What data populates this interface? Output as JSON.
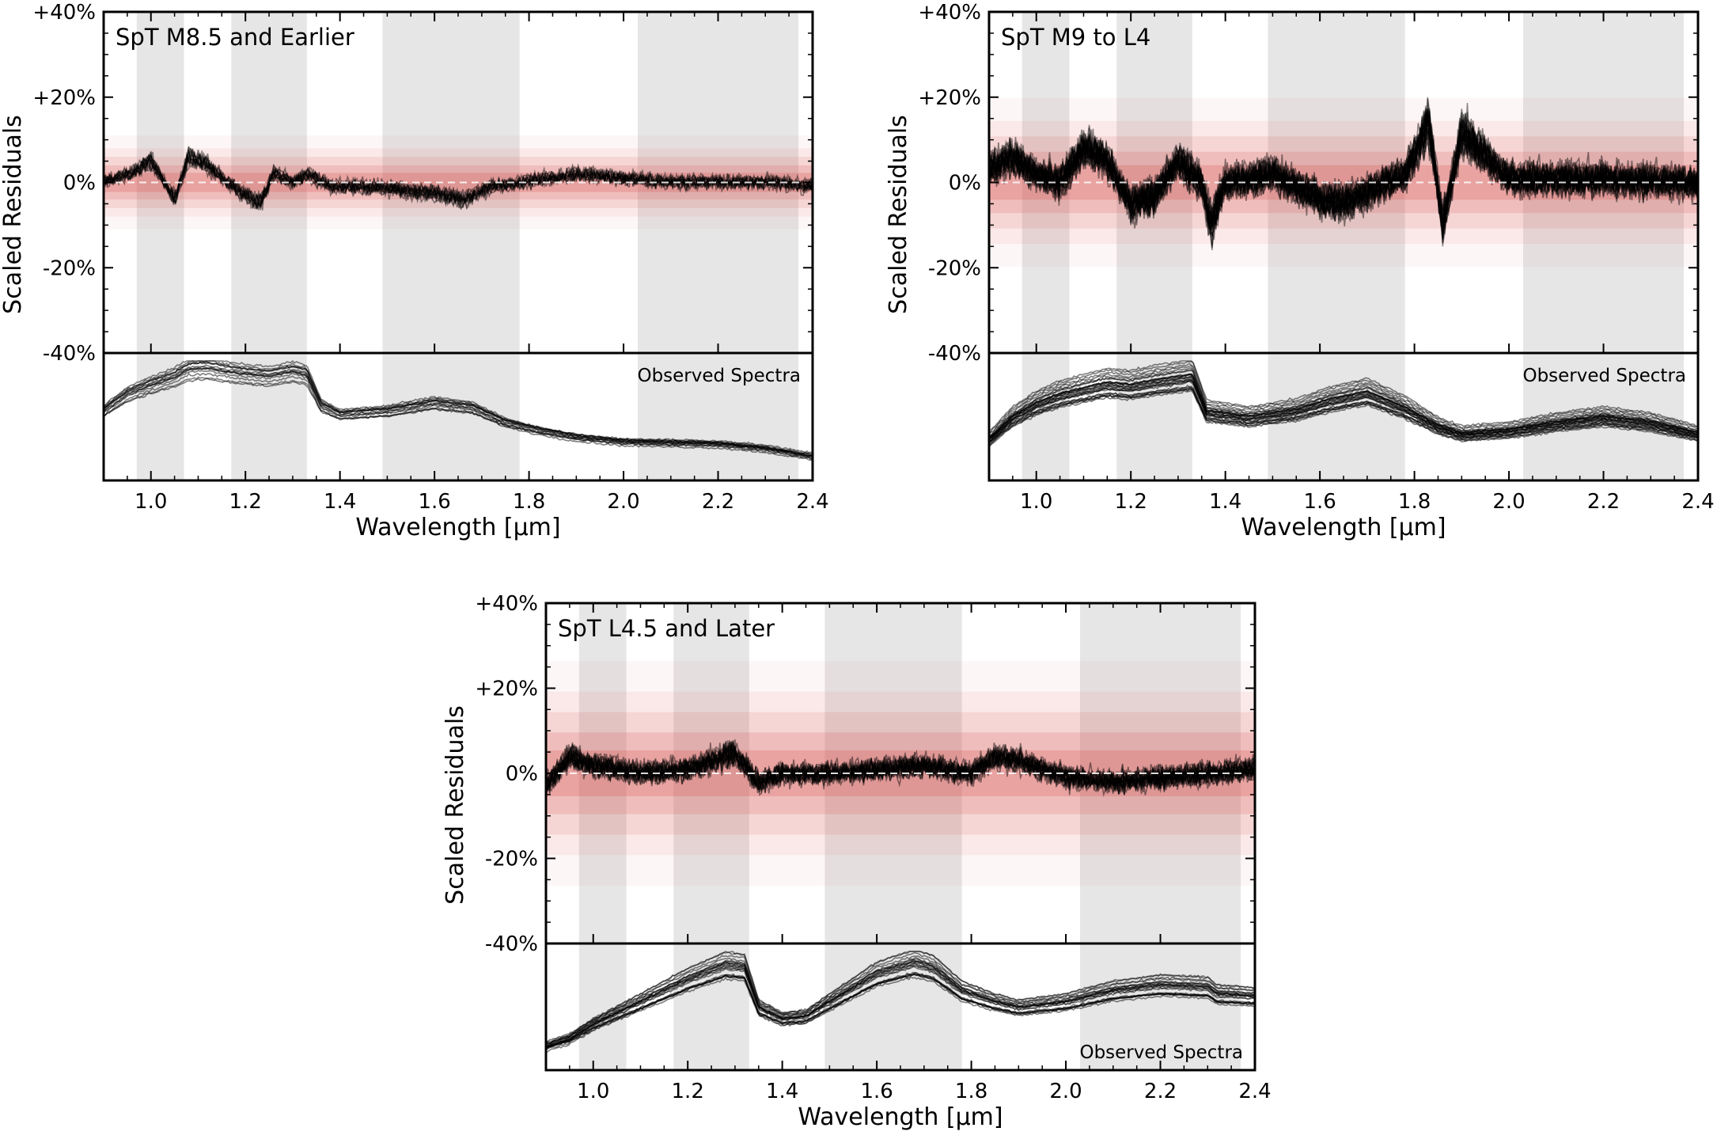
{
  "figure": {
    "ylabel": "Scaled Residuals",
    "xlabel": "Wavelength [µm]",
    "observed_label": "Observed Spectra"
  },
  "chart_data": [
    {
      "type": "line",
      "title": "SpT M8.5 and Earlier",
      "xlabel": "Wavelength [µm]",
      "ylabel": "Scaled Residuals",
      "xlim": [
        0.9,
        2.4
      ],
      "ylim": [
        -40,
        40
      ],
      "xticks": [
        "1.0",
        "1.2",
        "1.4",
        "1.6",
        "1.8",
        "2.0",
        "2.2",
        "2.4"
      ],
      "yticks": [
        "+40%",
        "+20%",
        "0%",
        "-20%",
        "-40%"
      ],
      "shaded_bands_um": [
        [
          0.97,
          1.07
        ],
        [
          1.17,
          1.33
        ],
        [
          1.49,
          1.78
        ],
        [
          2.03,
          2.37
        ]
      ],
      "zero_line": true,
      "annotation": "Observed Spectra",
      "residual_envelope_pct": 5,
      "n_spectra": 14,
      "noise_pct": 2.5,
      "residual_profile": {
        "x": [
          0.9,
          0.95,
          0.97,
          1.0,
          1.05,
          1.08,
          1.12,
          1.16,
          1.2,
          1.23,
          1.26,
          1.3,
          1.33,
          1.38,
          1.45,
          1.55,
          1.62,
          1.66,
          1.72,
          1.78,
          1.85,
          1.9,
          2.0,
          2.1,
          2.2,
          2.3,
          2.4
        ],
        "y": [
          0,
          2,
          3,
          5,
          -4,
          6,
          4,
          0,
          -3,
          -5,
          2,
          0,
          2,
          -1,
          -1,
          -2,
          -3,
          -4,
          -1,
          0,
          1,
          2,
          1,
          0,
          0,
          0,
          -1
        ]
      },
      "observed_spectrum": {
        "x": [
          0.9,
          0.95,
          1.0,
          1.05,
          1.08,
          1.12,
          1.16,
          1.2,
          1.25,
          1.3,
          1.33,
          1.36,
          1.4,
          1.5,
          1.6,
          1.68,
          1.75,
          1.82,
          1.9,
          2.0,
          2.1,
          2.2,
          2.3,
          2.4
        ],
        "flux": [
          0.55,
          0.7,
          0.78,
          0.85,
          0.92,
          0.93,
          0.9,
          0.88,
          0.86,
          0.9,
          0.87,
          0.6,
          0.52,
          0.55,
          0.62,
          0.58,
          0.45,
          0.38,
          0.32,
          0.28,
          0.27,
          0.26,
          0.22,
          0.15
        ]
      }
    },
    {
      "type": "line",
      "title": "SpT M9 to L4",
      "xlabel": "Wavelength [µm]",
      "ylabel": "Scaled Residuals",
      "xlim": [
        0.9,
        2.4
      ],
      "ylim": [
        -40,
        40
      ],
      "xticks": [
        "1.0",
        "1.2",
        "1.4",
        "1.6",
        "1.8",
        "2.0",
        "2.2",
        "2.4"
      ],
      "yticks": [
        "+40%",
        "+20%",
        "0%",
        "-20%",
        "-40%"
      ],
      "shaded_bands_um": [
        [
          0.97,
          1.07
        ],
        [
          1.17,
          1.33
        ],
        [
          1.49,
          1.78
        ],
        [
          2.03,
          2.37
        ]
      ],
      "zero_line": true,
      "annotation": "Observed Spectra",
      "residual_envelope_pct": 9,
      "n_spectra": 28,
      "noise_pct": 6,
      "residual_profile": {
        "x": [
          0.9,
          0.95,
          1.0,
          1.05,
          1.1,
          1.15,
          1.2,
          1.25,
          1.3,
          1.35,
          1.37,
          1.4,
          1.5,
          1.6,
          1.65,
          1.7,
          1.78,
          1.83,
          1.86,
          1.9,
          2.0,
          2.2,
          2.4
        ],
        "y": [
          3,
          6,
          2,
          0,
          8,
          5,
          -5,
          -3,
          5,
          0,
          -10,
          0,
          2,
          -4,
          -5,
          -2,
          2,
          14,
          -10,
          12,
          1,
          1,
          0
        ]
      },
      "observed_spectrum": {
        "x": [
          0.9,
          0.95,
          1.0,
          1.05,
          1.1,
          1.15,
          1.2,
          1.25,
          1.3,
          1.33,
          1.36,
          1.45,
          1.55,
          1.62,
          1.7,
          1.78,
          1.85,
          1.9,
          2.0,
          2.1,
          2.2,
          2.3,
          2.4
        ],
        "flux": [
          0.3,
          0.5,
          0.62,
          0.7,
          0.75,
          0.8,
          0.78,
          0.82,
          0.85,
          0.87,
          0.55,
          0.5,
          0.56,
          0.65,
          0.72,
          0.58,
          0.42,
          0.35,
          0.38,
          0.45,
          0.5,
          0.45,
          0.35
        ]
      }
    },
    {
      "type": "line",
      "title": "SpT L4.5 and Later",
      "xlabel": "Wavelength [µm]",
      "ylabel": "Scaled Residuals",
      "xlim": [
        0.9,
        2.4
      ],
      "ylim": [
        -40,
        40
      ],
      "xticks": [
        "1.0",
        "1.2",
        "1.4",
        "1.6",
        "1.8",
        "2.0",
        "2.2",
        "2.4"
      ],
      "yticks": [
        "+40%",
        "+20%",
        "0%",
        "-20%",
        "-40%"
      ],
      "shaded_bands_um": [
        [
          0.97,
          1.07
        ],
        [
          1.17,
          1.33
        ],
        [
          1.49,
          1.78
        ],
        [
          2.03,
          2.37
        ]
      ],
      "zero_line": true,
      "annotation": "Observed Spectra",
      "residual_envelope_pct": 12,
      "n_spectra": 22,
      "noise_pct": 4,
      "residual_profile": {
        "x": [
          0.9,
          0.95,
          1.0,
          1.1,
          1.2,
          1.3,
          1.35,
          1.4,
          1.5,
          1.6,
          1.7,
          1.8,
          1.85,
          1.9,
          2.0,
          2.1,
          2.2,
          2.3,
          2.4
        ],
        "y": [
          -3,
          4,
          2,
          0,
          1,
          5,
          -2,
          0,
          0,
          1,
          2,
          0,
          4,
          3,
          -1,
          -2,
          -1,
          0,
          1
        ]
      },
      "observed_spectrum": {
        "x": [
          0.9,
          0.95,
          1.0,
          1.1,
          1.2,
          1.28,
          1.32,
          1.35,
          1.4,
          1.45,
          1.5,
          1.6,
          1.68,
          1.72,
          1.78,
          1.85,
          1.9,
          2.0,
          2.1,
          2.2,
          2.3,
          2.32,
          2.4
        ],
        "flux": [
          0.15,
          0.22,
          0.35,
          0.55,
          0.75,
          0.88,
          0.86,
          0.5,
          0.4,
          0.42,
          0.55,
          0.8,
          0.9,
          0.85,
          0.65,
          0.55,
          0.5,
          0.55,
          0.65,
          0.7,
          0.68,
          0.62,
          0.6
        ]
      }
    }
  ]
}
